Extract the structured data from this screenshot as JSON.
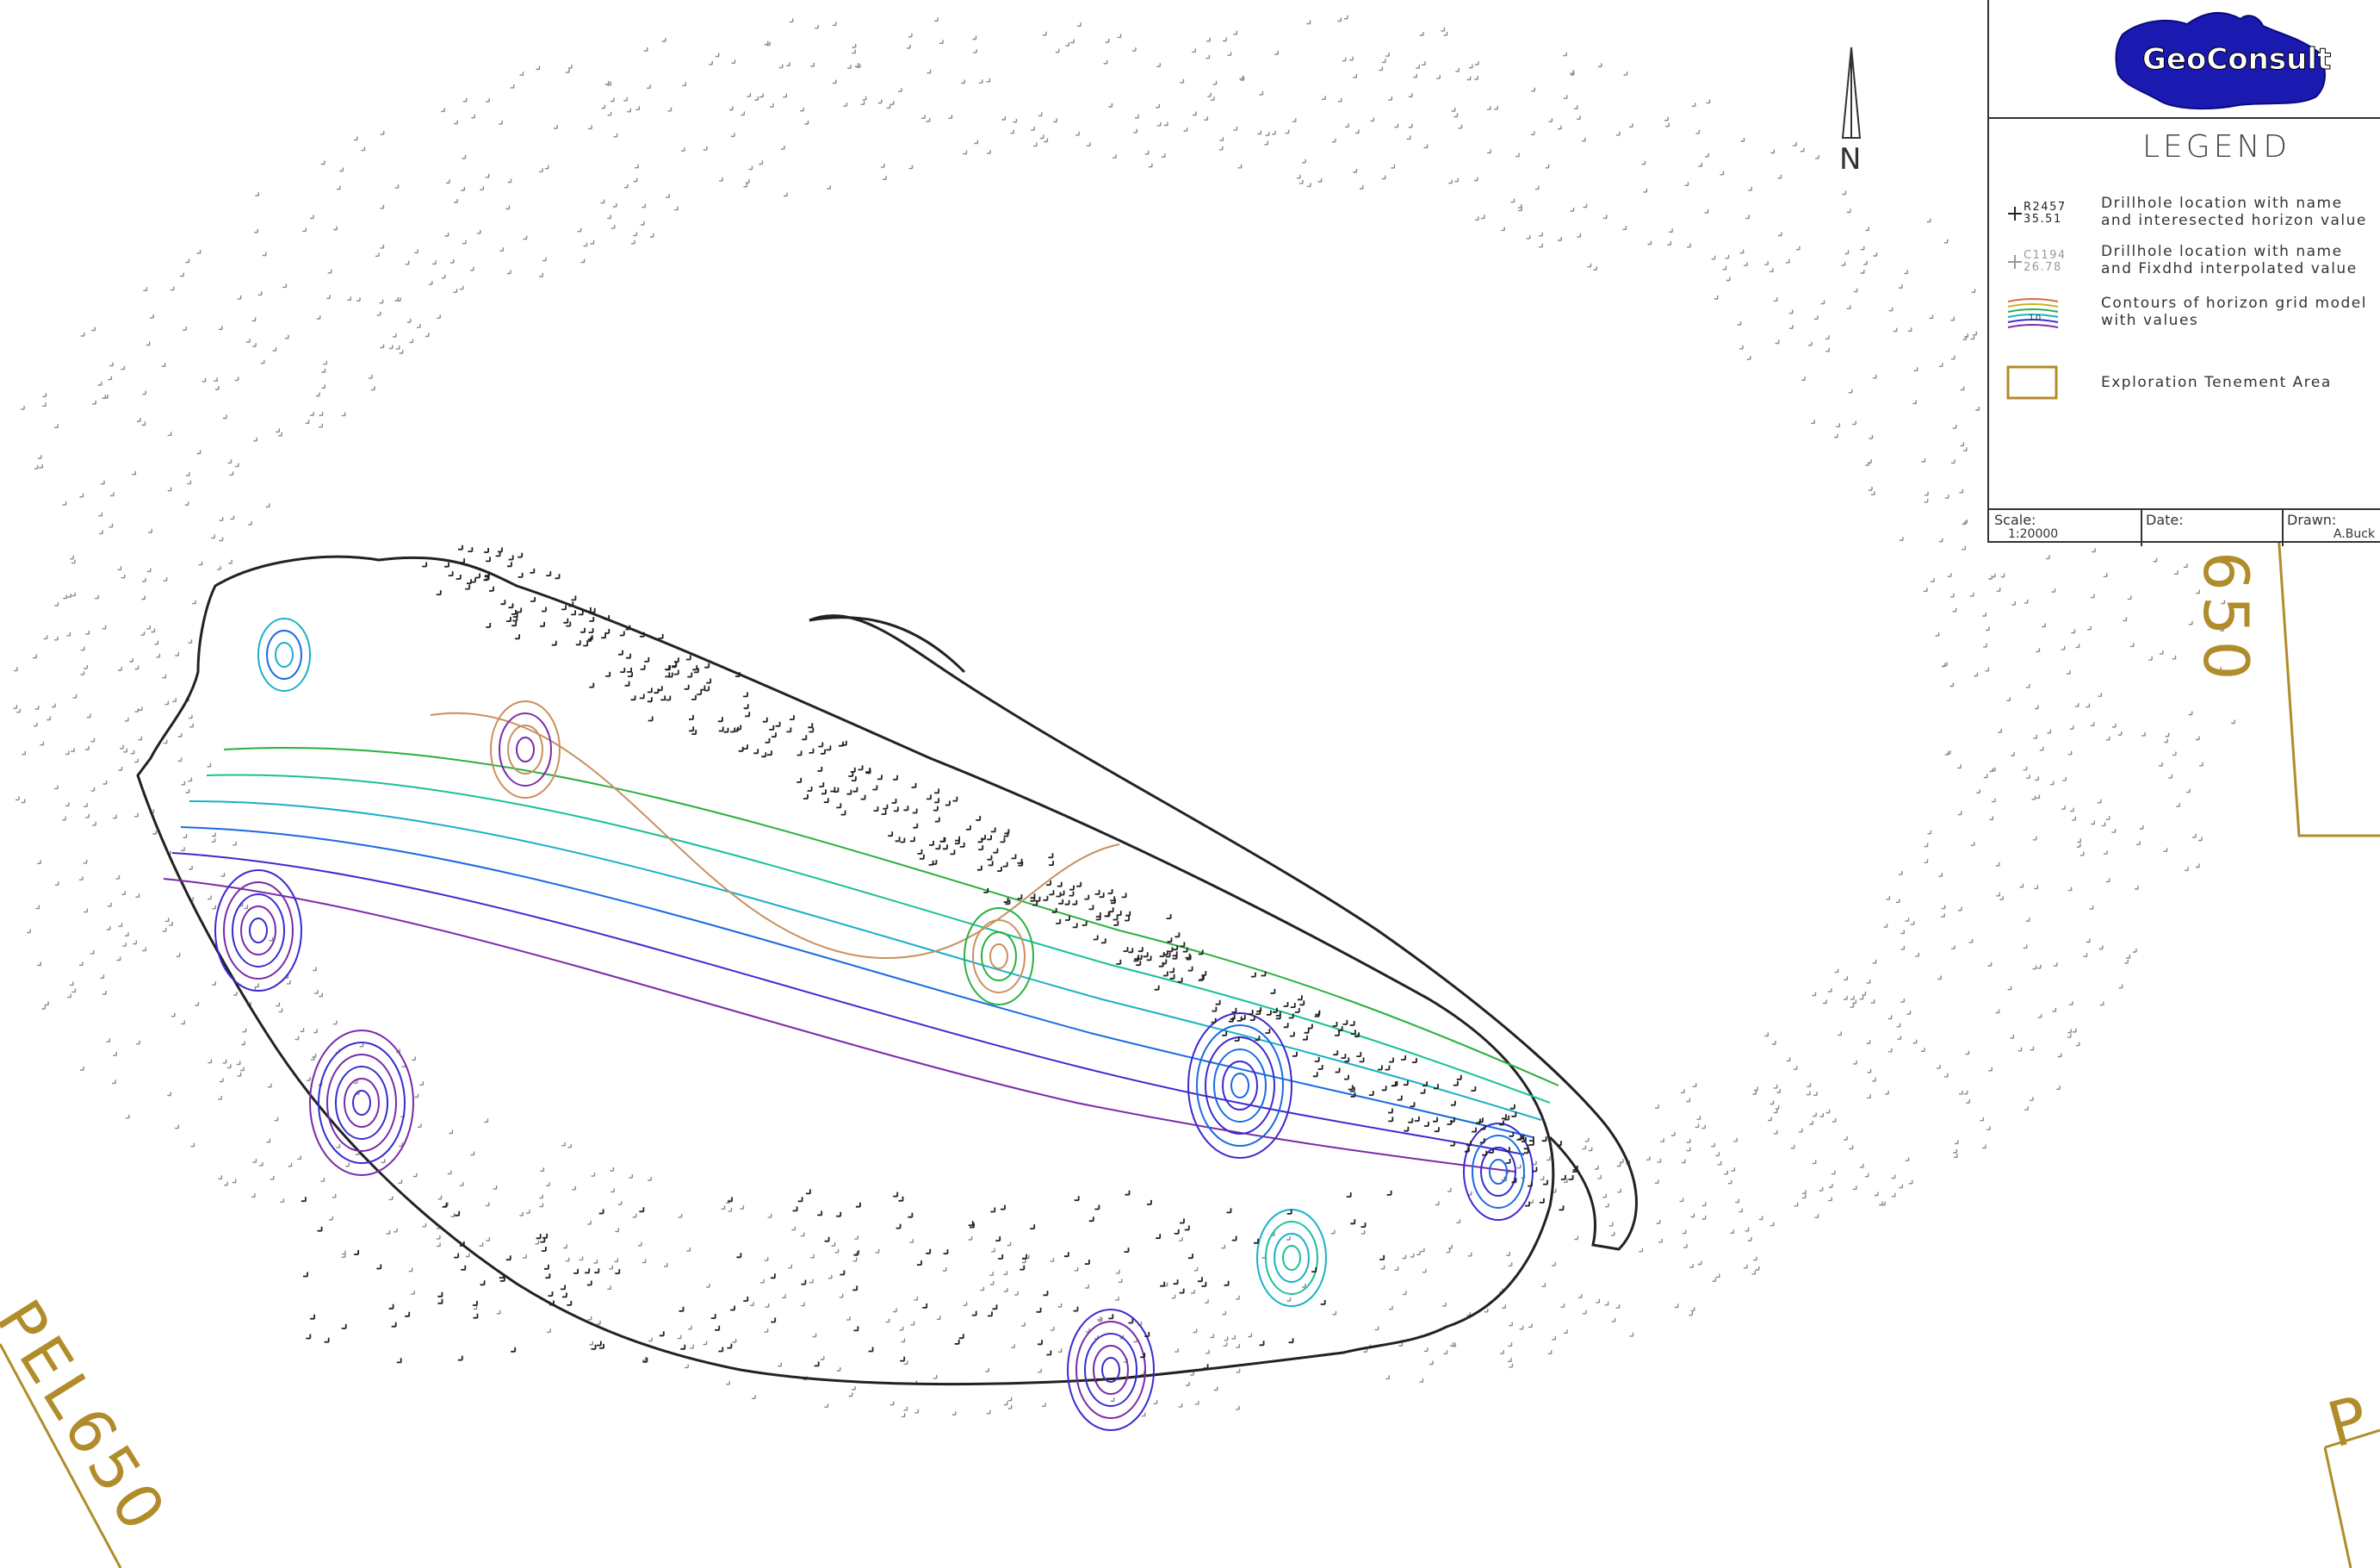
{
  "map": {
    "north_label": "N",
    "tenement_labels": [
      "PEL650",
      "650",
      "P"
    ]
  },
  "legend": {
    "logo_text": "GeoConsult",
    "title": "LEGEND",
    "items": [
      {
        "symbol_name": "R2457",
        "symbol_value": "35.51",
        "text": "Drillhole location with name\nand interesected horizon value"
      },
      {
        "symbol_name": "C1194",
        "symbol_value": "26.78",
        "text": "Drillhole location with name\nand Fixdhd interpolated value"
      },
      {
        "symbol_name": "10",
        "text": "Contours of horizon grid model\nwith values"
      },
      {
        "text": "Exploration Tenement Area"
      }
    ],
    "footer": {
      "scale_label": "Scale:",
      "scale_value": "1:20000",
      "date_label": "Date:",
      "date_value": "",
      "drawn_label": "Drawn:",
      "drawn_value": "A.Buck"
    }
  },
  "colors": {
    "boundary": "#222222",
    "tenement": "#b08c2a",
    "drillhole": "#222222",
    "drillhole_light": "#888888",
    "logo_bg": "#1a1ab0",
    "contours": [
      "#7a2aa8",
      "#3a2ad0",
      "#1a6ae0",
      "#1ab0c8",
      "#1ac09a",
      "#2ab040",
      "#c89060"
    ]
  }
}
